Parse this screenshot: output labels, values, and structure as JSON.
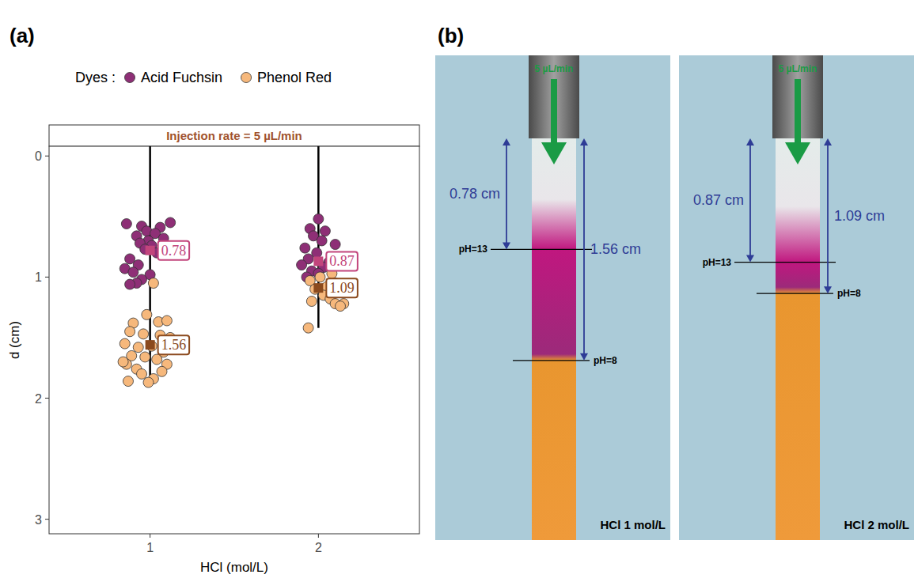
{
  "chart_data": {
    "type": "scatter",
    "panel_label": "(a)",
    "title": "Injection rate = 5 µL/min",
    "legend_title": "Dyes :",
    "legend": "top",
    "x_label": "HCl (mol/L)",
    "y_label": "d (cm)",
    "xlim": [
      0.4,
      2.6
    ],
    "xticks": [
      1,
      2
    ],
    "ylim": [
      3.12,
      -0.08
    ],
    "yticks": [
      0,
      1,
      2,
      3
    ],
    "data_labels": true,
    "ranges": {
      "x": [
        1,
        2
      ],
      "from": [
        -0.08,
        -0.08
      ],
      "to": [
        1.87,
        1.42
      ]
    },
    "series": [
      {
        "name": "Acid Fuchsin",
        "color": "#8e2f76",
        "marker": "circle",
        "x": [
          0.86,
          0.95,
          1.12,
          1.06,
          0.98,
          1.03,
          0.92,
          1.08,
          0.99,
          0.94,
          1.01,
          0.97,
          1.04,
          0.88,
          0.93,
          0.85,
          0.9,
          1.0,
          0.95,
          0.92,
          0.88,
          2.0,
          1.95,
          2.04,
          1.97,
          2.02,
          2.1,
          1.92,
          1.99,
          1.94,
          2.06,
          1.9,
          2.03,
          1.96,
          2.0,
          1.93
        ],
        "values": [
          0.56,
          0.58,
          0.55,
          0.59,
          0.62,
          0.64,
          0.66,
          0.68,
          0.7,
          0.72,
          0.74,
          0.77,
          0.8,
          0.85,
          0.9,
          0.93,
          0.96,
          0.98,
          1.02,
          1.05,
          1.06,
          0.52,
          0.6,
          0.62,
          0.66,
          0.7,
          0.73,
          0.76,
          0.8,
          0.85,
          0.88,
          0.9,
          0.92,
          0.95,
          0.97,
          1.0
        ],
        "mean_x": [
          1,
          2
        ],
        "means": [
          0.78,
          0.87
        ]
      },
      {
        "name": "Phenol Red",
        "color": "#f6b87c",
        "marker": "circle",
        "x": [
          1.02,
          0.98,
          0.9,
          1.05,
          1.1,
          0.88,
          0.96,
          1.06,
          1.12,
          0.85,
          0.93,
          1.01,
          1.08,
          0.89,
          0.97,
          1.04,
          1.1,
          0.86,
          0.92,
          1.07,
          0.95,
          1.02,
          0.87,
          0.99,
          0.84,
          2.08,
          2.01,
          1.95,
          2.1,
          2.05,
          1.98,
          2.12,
          2.03,
          2.07,
          1.96,
          2.1,
          2.15,
          2.13,
          1.94
        ],
        "values": [
          1.05,
          1.31,
          1.38,
          1.37,
          1.36,
          1.45,
          1.47,
          1.48,
          1.5,
          1.55,
          1.58,
          1.57,
          1.62,
          1.65,
          1.66,
          1.68,
          1.72,
          1.72,
          1.76,
          1.78,
          1.8,
          1.84,
          1.86,
          1.87,
          1.7,
          0.97,
          1.0,
          1.03,
          1.05,
          1.08,
          1.1,
          1.12,
          1.15,
          1.18,
          1.2,
          1.22,
          1.22,
          1.24,
          1.42
        ],
        "mean_x": [
          1,
          2
        ],
        "means": [
          1.56,
          1.09
        ]
      }
    ]
  },
  "diagram": {
    "label": "(b)",
    "panels": [
      {
        "flow_rate": "5 µL/min",
        "medium": "HCl 1 mol/L",
        "ph_high": {
          "label": "pH=13",
          "depth": {
            "value": 0.78,
            "label": "0.78 cm"
          }
        },
        "ph_low": {
          "label": "pH=8",
          "depth": {
            "value": 1.56,
            "label": "1.56 cm"
          }
        }
      },
      {
        "flow_rate": "5 µL/min",
        "medium": "HCl 2 mol/L",
        "ph_high": {
          "label": "pH=13",
          "depth": {
            "value": 0.87,
            "label": "0.87 cm"
          }
        },
        "ph_low": {
          "label": "pH=8",
          "depth": {
            "value": 1.09,
            "label": "1.09 cm"
          }
        }
      }
    ]
  }
}
